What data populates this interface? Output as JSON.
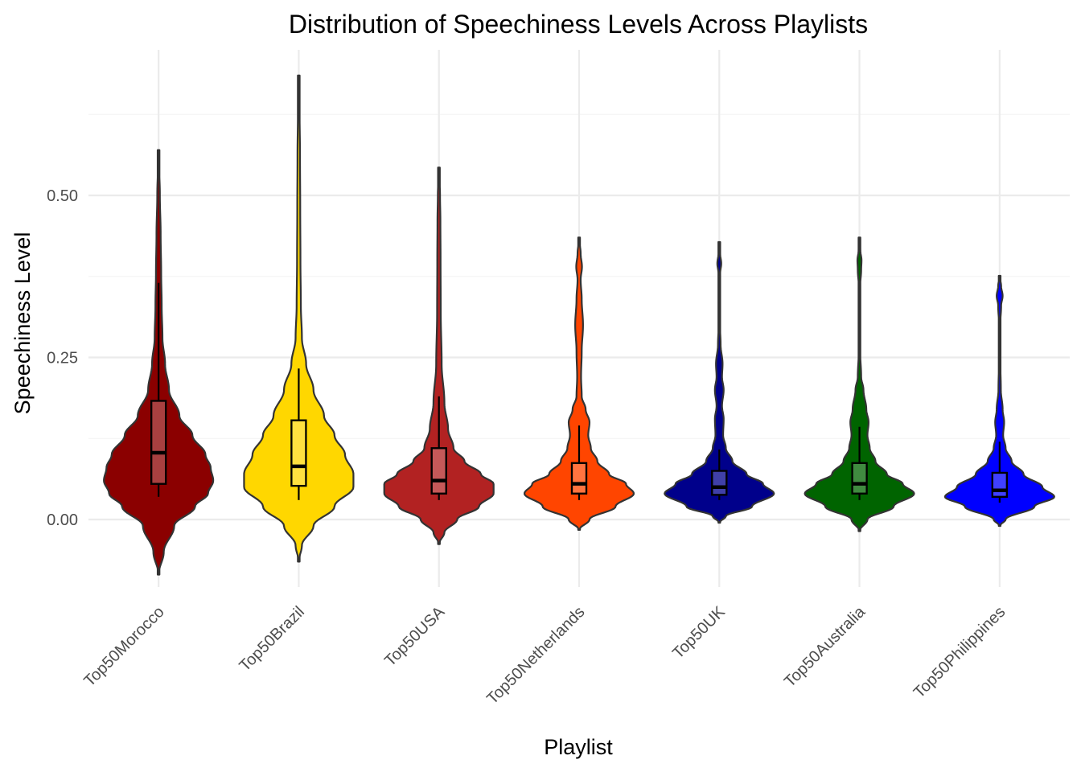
{
  "chart_data": {
    "type": "violin",
    "title": "Distribution of Speechiness Levels Across Playlists",
    "xlabel": "Playlist",
    "ylabel": "Speechiness Level",
    "ylim": [
      -0.12,
      0.72
    ],
    "yticks": [
      0.0,
      0.25,
      0.5
    ],
    "ytick_labels": [
      "0.00",
      "0.25",
      "0.50"
    ],
    "grid": true,
    "legend": "none",
    "categories": [
      "Top50Morocco",
      "Top50Brazil",
      "Top50USA",
      "Top50Netherlands",
      "Top50UK",
      "Top50Australia",
      "Top50Philippines"
    ],
    "series": [
      {
        "category": "Top50Morocco",
        "color": "#8b0000",
        "min": -0.085,
        "max": 0.57,
        "box": {
          "q1": 0.055,
          "median": 0.103,
          "q3": 0.183,
          "whisker_low": 0.035,
          "whisker_high": 0.365
        },
        "density": [
          [
            -0.085,
            0.0
          ],
          [
            -0.05,
            0.02
          ],
          [
            -0.01,
            0.06
          ],
          [
            0.02,
            0.14
          ],
          [
            0.04,
            0.19
          ],
          [
            0.06,
            0.21
          ],
          [
            0.08,
            0.2
          ],
          [
            0.1,
            0.18
          ],
          [
            0.13,
            0.13
          ],
          [
            0.16,
            0.08
          ],
          [
            0.2,
            0.04
          ],
          [
            0.24,
            0.025
          ],
          [
            0.28,
            0.015
          ],
          [
            0.33,
            0.012
          ],
          [
            0.38,
            0.01
          ],
          [
            0.44,
            0.008
          ],
          [
            0.5,
            0.005
          ],
          [
            0.57,
            0.0
          ]
        ]
      },
      {
        "category": "Top50Brazil",
        "color": "#ffd700",
        "min": -0.065,
        "max": 0.685,
        "box": {
          "q1": 0.052,
          "median": 0.082,
          "q3": 0.153,
          "whisker_low": 0.03,
          "whisker_high": 0.233
        },
        "density": [
          [
            -0.065,
            0.0
          ],
          [
            -0.04,
            0.015
          ],
          [
            -0.01,
            0.07
          ],
          [
            0.02,
            0.17
          ],
          [
            0.05,
            0.26
          ],
          [
            0.07,
            0.26
          ],
          [
            0.1,
            0.22
          ],
          [
            0.13,
            0.17
          ],
          [
            0.16,
            0.12
          ],
          [
            0.2,
            0.07
          ],
          [
            0.24,
            0.035
          ],
          [
            0.28,
            0.015
          ],
          [
            0.33,
            0.01
          ],
          [
            0.4,
            0.008
          ],
          [
            0.48,
            0.007
          ],
          [
            0.56,
            0.006
          ],
          [
            0.63,
            0.004
          ],
          [
            0.685,
            0.0
          ]
        ]
      },
      {
        "category": "Top50USA",
        "color": "#b22222",
        "min": -0.038,
        "max": 0.543,
        "box": {
          "q1": 0.04,
          "median": 0.06,
          "q3": 0.11,
          "whisker_low": 0.03,
          "whisker_high": 0.19
        },
        "density": [
          [
            -0.038,
            0.0
          ],
          [
            -0.02,
            0.03
          ],
          [
            0.0,
            0.1
          ],
          [
            0.02,
            0.22
          ],
          [
            0.04,
            0.3
          ],
          [
            0.055,
            0.3
          ],
          [
            0.07,
            0.23
          ],
          [
            0.09,
            0.14
          ],
          [
            0.11,
            0.08
          ],
          [
            0.14,
            0.05
          ],
          [
            0.18,
            0.03
          ],
          [
            0.24,
            0.015
          ],
          [
            0.32,
            0.01
          ],
          [
            0.4,
            0.009
          ],
          [
            0.46,
            0.008
          ],
          [
            0.5,
            0.006
          ],
          [
            0.543,
            0.0
          ]
        ]
      },
      {
        "category": "Top50Netherlands",
        "color": "#ff4500",
        "min": -0.016,
        "max": 0.435,
        "box": {
          "q1": 0.04,
          "median": 0.055,
          "q3": 0.087,
          "whisker_low": 0.03,
          "whisker_high": 0.145
        },
        "density": [
          [
            -0.016,
            0.0
          ],
          [
            0.0,
            0.08
          ],
          [
            0.02,
            0.28
          ],
          [
            0.04,
            0.42
          ],
          [
            0.055,
            0.36
          ],
          [
            0.07,
            0.23
          ],
          [
            0.09,
            0.14
          ],
          [
            0.11,
            0.09
          ],
          [
            0.13,
            0.07
          ],
          [
            0.15,
            0.08
          ],
          [
            0.17,
            0.05
          ],
          [
            0.19,
            0.02
          ],
          [
            0.22,
            0.015
          ],
          [
            0.26,
            0.02
          ],
          [
            0.3,
            0.03
          ],
          [
            0.34,
            0.02
          ],
          [
            0.37,
            0.012
          ],
          [
            0.39,
            0.022
          ],
          [
            0.41,
            0.012
          ],
          [
            0.435,
            0.0
          ]
        ]
      },
      {
        "category": "Top50UK",
        "color": "#00008b",
        "min": -0.005,
        "max": 0.428,
        "box": {
          "q1": 0.038,
          "median": 0.05,
          "q3": 0.075,
          "whisker_low": 0.03,
          "whisker_high": 0.108
        },
        "density": [
          [
            -0.005,
            0.0
          ],
          [
            0.005,
            0.06
          ],
          [
            0.02,
            0.3
          ],
          [
            0.04,
            0.5
          ],
          [
            0.055,
            0.4
          ],
          [
            0.07,
            0.25
          ],
          [
            0.09,
            0.12
          ],
          [
            0.11,
            0.06
          ],
          [
            0.13,
            0.035
          ],
          [
            0.155,
            0.04
          ],
          [
            0.175,
            0.025
          ],
          [
            0.2,
            0.04
          ],
          [
            0.22,
            0.025
          ],
          [
            0.24,
            0.03
          ],
          [
            0.27,
            0.012
          ],
          [
            0.3,
            0.006
          ],
          [
            0.35,
            0.005
          ],
          [
            0.38,
            0.008
          ],
          [
            0.395,
            0.018
          ],
          [
            0.41,
            0.008
          ],
          [
            0.428,
            0.0
          ]
        ]
      },
      {
        "category": "Top50Australia",
        "color": "#006400",
        "min": -0.018,
        "max": 0.435,
        "box": {
          "q1": 0.04,
          "median": 0.055,
          "q3": 0.087,
          "whisker_low": 0.03,
          "whisker_high": 0.143
        },
        "density": [
          [
            -0.018,
            0.0
          ],
          [
            0.0,
            0.07
          ],
          [
            0.02,
            0.3
          ],
          [
            0.04,
            0.48
          ],
          [
            0.055,
            0.38
          ],
          [
            0.07,
            0.24
          ],
          [
            0.09,
            0.14
          ],
          [
            0.11,
            0.09
          ],
          [
            0.13,
            0.07
          ],
          [
            0.15,
            0.08
          ],
          [
            0.17,
            0.06
          ],
          [
            0.2,
            0.035
          ],
          [
            0.22,
            0.015
          ],
          [
            0.26,
            0.006
          ],
          [
            0.32,
            0.005
          ],
          [
            0.36,
            0.006
          ],
          [
            0.385,
            0.015
          ],
          [
            0.4,
            0.018
          ],
          [
            0.415,
            0.008
          ],
          [
            0.435,
            0.0
          ]
        ]
      },
      {
        "category": "Top50Philippines",
        "color": "#0000ff",
        "min": -0.01,
        "max": 0.376,
        "box": {
          "q1": 0.035,
          "median": 0.045,
          "q3": 0.072,
          "whisker_low": 0.026,
          "whisker_high": 0.12
        },
        "density": [
          [
            -0.01,
            0.0
          ],
          [
            0.0,
            0.06
          ],
          [
            0.02,
            0.35
          ],
          [
            0.035,
            0.55
          ],
          [
            0.05,
            0.43
          ],
          [
            0.07,
            0.24
          ],
          [
            0.09,
            0.12
          ],
          [
            0.11,
            0.06
          ],
          [
            0.13,
            0.035
          ],
          [
            0.15,
            0.045
          ],
          [
            0.17,
            0.03
          ],
          [
            0.2,
            0.012
          ],
          [
            0.25,
            0.006
          ],
          [
            0.3,
            0.006
          ],
          [
            0.33,
            0.015
          ],
          [
            0.345,
            0.03
          ],
          [
            0.36,
            0.015
          ],
          [
            0.376,
            0.0
          ]
        ]
      }
    ]
  }
}
